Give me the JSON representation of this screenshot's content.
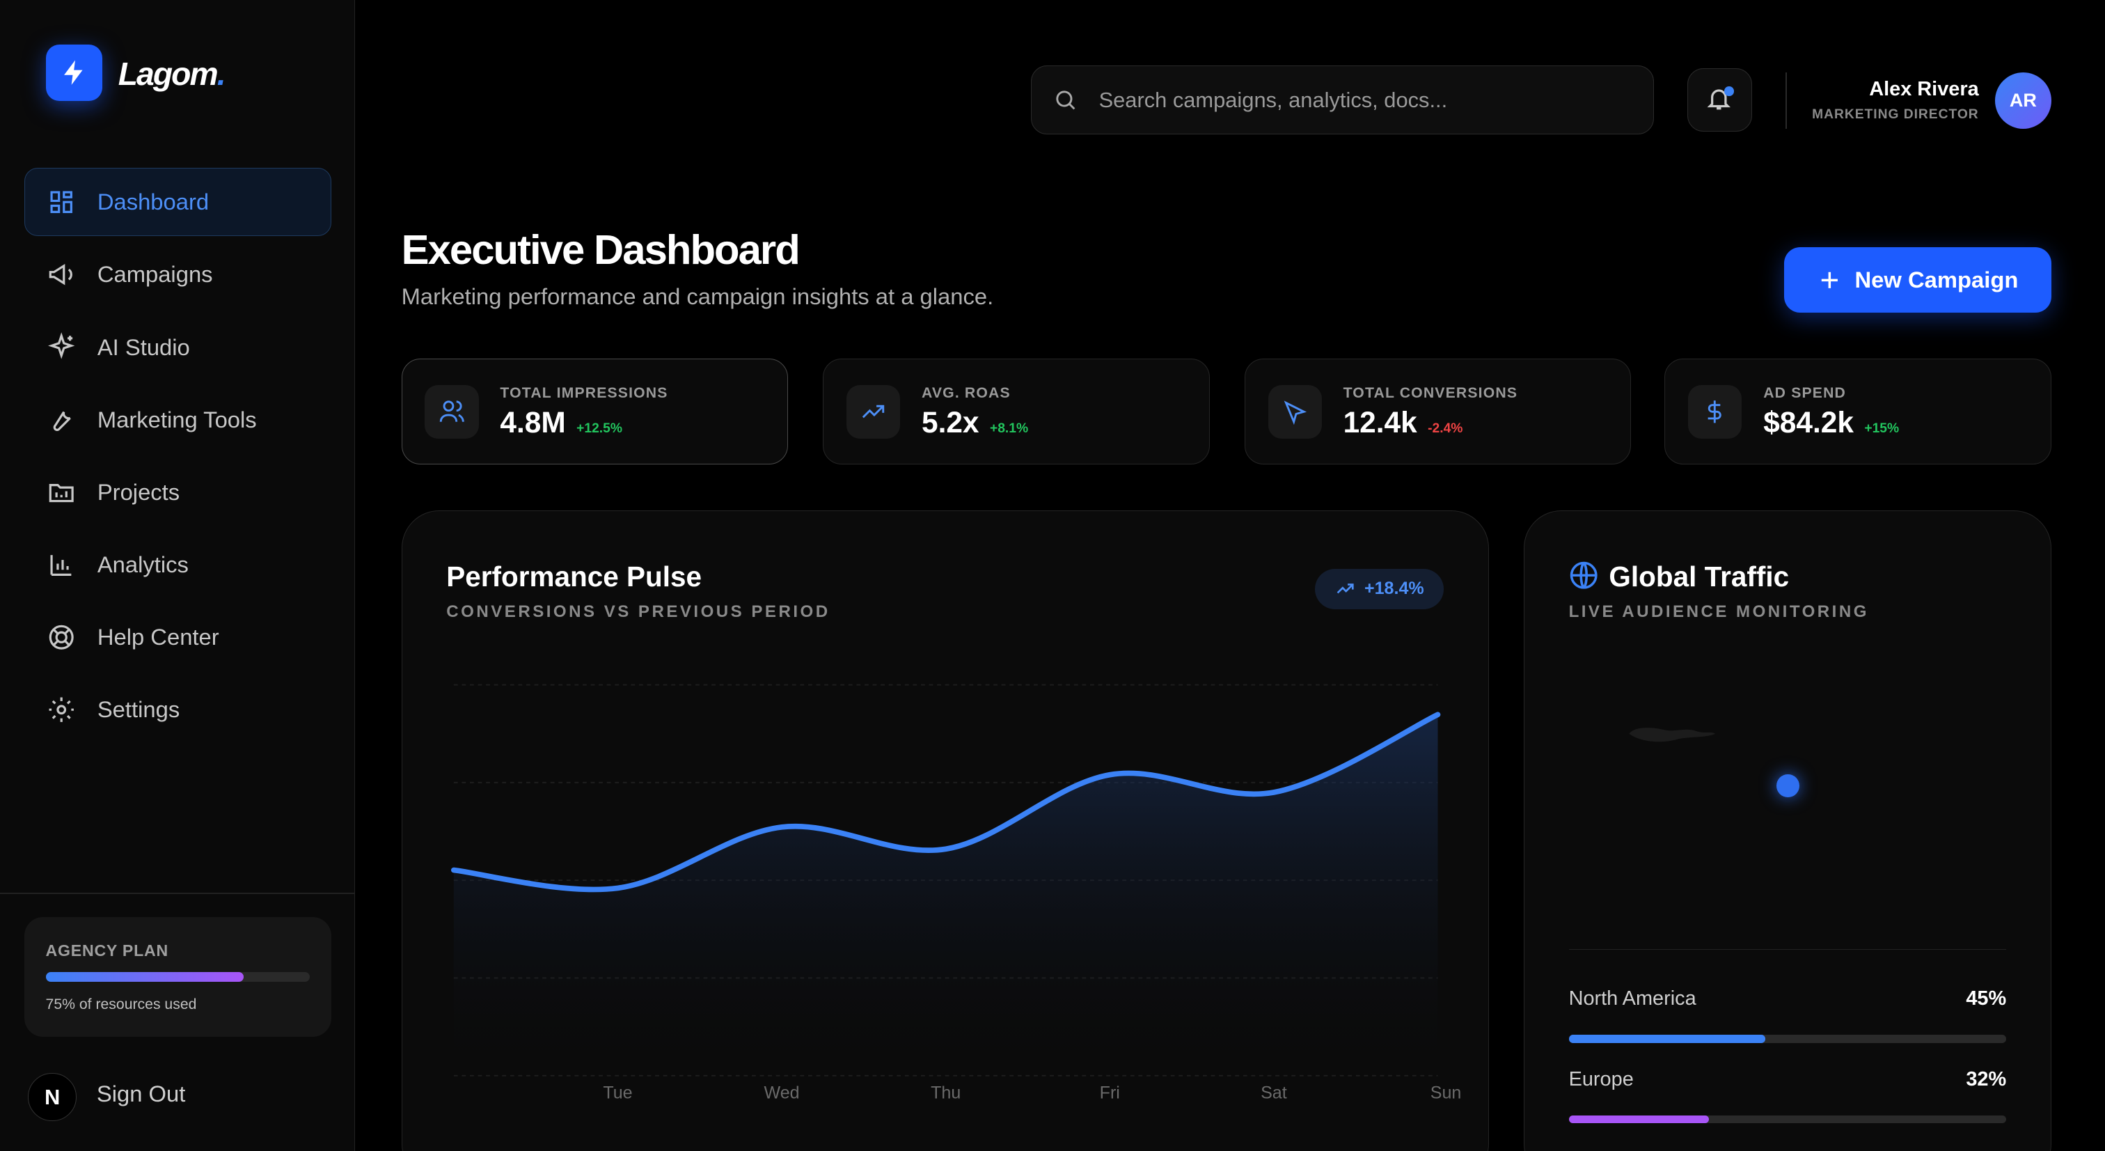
{
  "sidebar": {
    "brand": "Lagom",
    "brand_mark": ".",
    "nav": [
      "Dashboard",
      "Campaigns",
      "AI Studio",
      "Marketing Tools",
      "Projects",
      "Analytics",
      "Help Center",
      "Settings"
    ],
    "active": 0,
    "plan": {
      "label": "AGENCY PLAN",
      "usage": 75,
      "usage_text": "75% of resources used"
    },
    "sign_out": "Sign Out"
  },
  "header": {
    "search_placeholder": "Search campaigns, analytics, docs...",
    "user": {
      "name": "Alex Rivera",
      "role": "MARKETING DIRECTOR",
      "initials": "AR"
    }
  },
  "page": {
    "title": "Executive Dashboard",
    "subtitle": "Marketing performance and campaign insights at a glance.",
    "new_button": "New Campaign"
  },
  "stats": [
    {
      "label": "TOTAL IMPRESSIONS",
      "value": "4.8M",
      "change": "+12.5%",
      "trend": "up"
    },
    {
      "label": "AVG. ROAS",
      "value": "5.2x",
      "change": "+8.1%",
      "trend": "up"
    },
    {
      "label": "TOTAL CONVERSIONS",
      "value": "12.4k",
      "change": "-2.4%",
      "trend": "down"
    },
    {
      "label": "AD SPEND",
      "value": "$84.2k",
      "change": "+15%",
      "trend": "up"
    }
  ],
  "chart_data": {
    "type": "line",
    "title": "Performance Pulse",
    "subtitle": "CONVERSIONS VS PREVIOUS PERIOD",
    "badge": "+18.4%",
    "categories": [
      null,
      "Tue",
      "Wed",
      "Thu",
      "Fri",
      "Sat",
      "Sun"
    ],
    "values": [
      52.6,
      48,
      63.6,
      58,
      77,
      72.5,
      92.4
    ],
    "color": "#3b82f6",
    "ylim": [
      0,
      100
    ],
    "grid_lines": [
      0,
      25,
      50,
      75,
      100
    ]
  },
  "traffic": {
    "title": "Global Traffic",
    "subtitle": "LIVE AUDIENCE MONITORING",
    "regions": [
      "North America",
      "Europe"
    ],
    "values": [
      45,
      32
    ],
    "value_labels": [
      "45%",
      "32%"
    ],
    "colors": [
      "#3b82f6",
      "#a855f7"
    ],
    "xlim": [
      0,
      100
    ]
  }
}
